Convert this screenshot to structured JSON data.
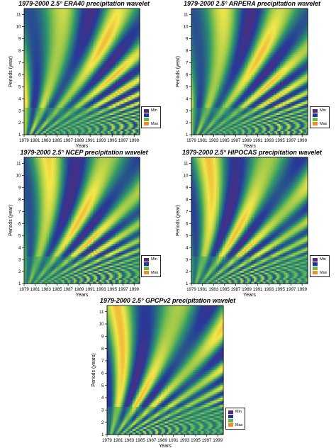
{
  "chart_data": [
    {
      "type": "heatmap",
      "title": "1979-2000 2.5° ERA40 precipitation wavelet",
      "xlabel": "Years",
      "ylabel": "Periods (year)",
      "xticks": [
        "1979",
        "1981",
        "1983",
        "1985",
        "1987",
        "1989",
        "1991",
        "1993",
        "1995",
        "1997",
        "1999"
      ],
      "yticks": [
        1,
        2,
        3,
        4,
        5,
        6,
        7,
        8,
        9,
        10,
        11
      ],
      "xlim": [
        1979,
        2000
      ],
      "ylim": [
        1,
        11.5
      ],
      "legend": {
        "position": "right",
        "entries": [
          "Min",
          "",
          "",
          "Max"
        ]
      }
    },
    {
      "type": "heatmap",
      "title": "1979-2000 2.5° ARPERA precipitation wavelet",
      "xlabel": "Years",
      "ylabel": "Periods (year)",
      "xticks": [
        "1979",
        "1981",
        "1983",
        "1985",
        "1987",
        "1989",
        "1991",
        "1993",
        "1995",
        "1997",
        "1999"
      ],
      "yticks": [
        1,
        2,
        3,
        4,
        5,
        6,
        7,
        8,
        9,
        10,
        11
      ],
      "xlim": [
        1979,
        2000
      ],
      "ylim": [
        1,
        11.5
      ],
      "legend": {
        "position": "right",
        "entries": [
          "Min",
          "",
          "",
          "Max"
        ]
      }
    },
    {
      "type": "heatmap",
      "title": "1979-2000 2.5° NCEP precipitation wavelet",
      "xlabel": "Years",
      "ylabel": "Periods (year)",
      "xticks": [
        "1979",
        "1981",
        "1983",
        "1985",
        "1987",
        "1989",
        "1991",
        "1993",
        "1995",
        "1997",
        "1999"
      ],
      "yticks": [
        1,
        2,
        3,
        4,
        5,
        6,
        7,
        8,
        9,
        10,
        11
      ],
      "xlim": [
        1979,
        2000
      ],
      "ylim": [
        1,
        11.5
      ],
      "legend": {
        "position": "right",
        "entries": [
          "Min",
          "",
          "",
          "Max"
        ]
      }
    },
    {
      "type": "heatmap",
      "title": "1979-2000 2.5° HIPOCAS precipitation wavelet",
      "xlabel": "Years",
      "ylabel": "Periods (year)",
      "xticks": [
        "1979",
        "1981",
        "1983",
        "1985",
        "1987",
        "1989",
        "1991",
        "1993",
        "1995",
        "1997",
        "1999"
      ],
      "yticks": [
        1,
        2,
        3,
        4,
        5,
        6,
        7,
        8,
        9,
        10,
        11
      ],
      "xlim": [
        1979,
        2000
      ],
      "ylim": [
        1,
        11.5
      ],
      "legend": {
        "position": "right",
        "entries": [
          "Min",
          "",
          "",
          "Max"
        ]
      }
    },
    {
      "type": "heatmap",
      "title": "1979-2000 2.5° GPCPv2 precipitation wavelet",
      "xlabel": "Years",
      "ylabel": "Periods (years)",
      "xticks": [
        "1979",
        "1981",
        "1983",
        "1985",
        "1987",
        "1989",
        "1991",
        "1993",
        "1995",
        "1997",
        "1999"
      ],
      "yticks": [
        1,
        2,
        3,
        4,
        5,
        6,
        7,
        8,
        9,
        10,
        11
      ],
      "xlim": [
        1979,
        2000
      ],
      "ylim": [
        1,
        11.5
      ],
      "legend": {
        "position": "right",
        "entries": [
          "Min",
          "",
          "",
          "Max"
        ]
      }
    }
  ],
  "colors": {
    "scale": [
      "#5a2a78",
      "#263a9a",
      "#2f9a6a",
      "#8ac24a",
      "#f2e84a",
      "#f08a2a"
    ],
    "legend_swatches": [
      "#5a2a78",
      "#22349a",
      "#6fb445",
      "#f08a2a"
    ]
  }
}
